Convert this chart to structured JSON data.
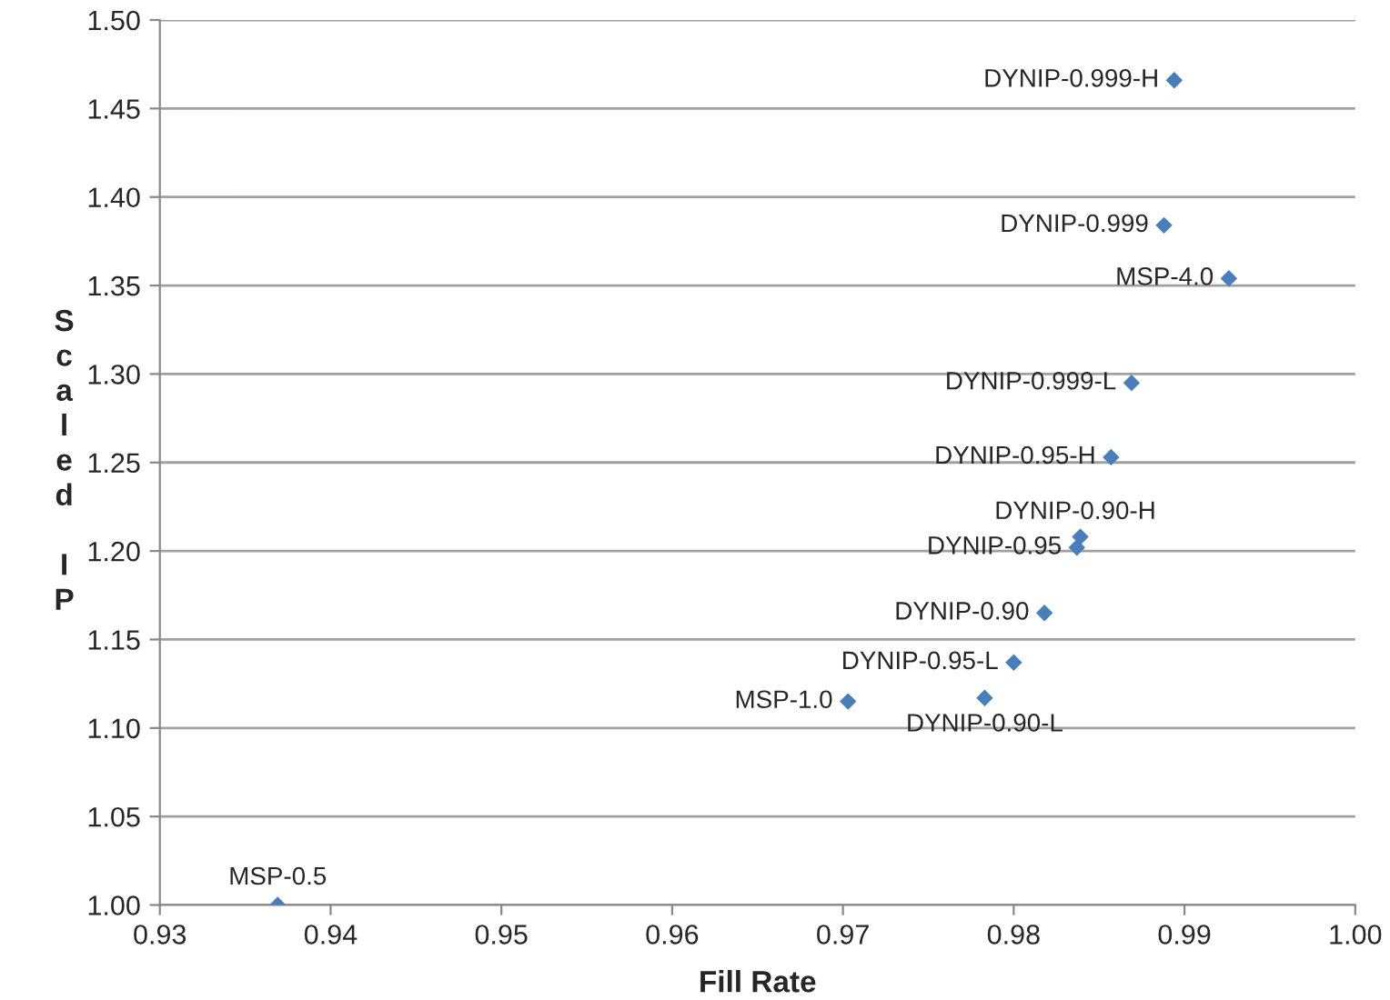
{
  "chart_data": {
    "type": "scatter",
    "xlabel": "Fill Rate",
    "ylabel": "Scaled IP",
    "x": [
      0.9369,
      0.9703,
      0.9783,
      0.98,
      0.9818,
      0.9837,
      0.9839,
      0.9857,
      0.9869,
      0.9888,
      0.9926,
      0.9894
    ],
    "series": [
      {
        "color": "#4a7ebb",
        "values": [
          1.0,
          1.115,
          1.117,
          1.137,
          1.165,
          1.202,
          1.208,
          1.253,
          1.295,
          1.384,
          1.354,
          1.466
        ]
      }
    ],
    "annotations": [
      {
        "text": "MSP-0.5",
        "x": 0.9369,
        "y": 1.0
      },
      {
        "text": "MSP-1.0",
        "x": 0.9703,
        "y": 1.115
      },
      {
        "text": "DYNIP-0.90-L",
        "x": 0.9783,
        "y": 1.117
      },
      {
        "text": "DYNIP-0.95-L",
        "x": 0.98,
        "y": 1.137
      },
      {
        "text": "DYNIP-0.90",
        "x": 0.9818,
        "y": 1.165
      },
      {
        "text": "DYNIP-0.95",
        "x": 0.9837,
        "y": 1.202
      },
      {
        "text": "DYNIP-0.90-H",
        "x": 0.9839,
        "y": 1.208
      },
      {
        "text": "DYNIP-0.95-H",
        "x": 0.9857,
        "y": 1.253
      },
      {
        "text": "DYNIP-0.999-L",
        "x": 0.9869,
        "y": 1.295
      },
      {
        "text": "DYNIP-0.999",
        "x": 0.9888,
        "y": 1.384
      },
      {
        "text": "MSP-4.0",
        "x": 0.9926,
        "y": 1.354
      },
      {
        "text": "DYNIP-0.999-H",
        "x": 0.9894,
        "y": 1.466
      }
    ],
    "xlim": [
      0.93,
      1.0
    ],
    "xticks": [
      {
        "value": 0.93,
        "label": "0.93"
      },
      {
        "value": 0.94,
        "label": "0.94"
      },
      {
        "value": 0.95,
        "label": "0.95"
      },
      {
        "value": 0.96,
        "label": "0.96"
      },
      {
        "value": 0.97,
        "label": "0.97"
      },
      {
        "value": 0.98,
        "label": "0.98"
      },
      {
        "value": 0.99,
        "label": "0.99"
      },
      {
        "value": 1.0,
        "label": "1.00"
      }
    ],
    "ylim": [
      1.0,
      1.5
    ],
    "yticks": [
      {
        "value": 1.0,
        "label": "1.00"
      },
      {
        "value": 1.05,
        "label": "1.05"
      },
      {
        "value": 1.1,
        "label": "1.10"
      },
      {
        "value": 1.15,
        "label": "1.15"
      },
      {
        "value": 1.2,
        "label": "1.20"
      },
      {
        "value": 1.25,
        "label": "1.25"
      },
      {
        "value": 1.3,
        "label": "1.30"
      },
      {
        "value": 1.35,
        "label": "1.35"
      },
      {
        "value": 1.4,
        "label": "1.40"
      },
      {
        "value": 1.45,
        "label": "1.45"
      },
      {
        "value": 1.5,
        "label": "1.50"
      }
    ],
    "grid": "y",
    "marker": "diamond",
    "legend": false
  }
}
